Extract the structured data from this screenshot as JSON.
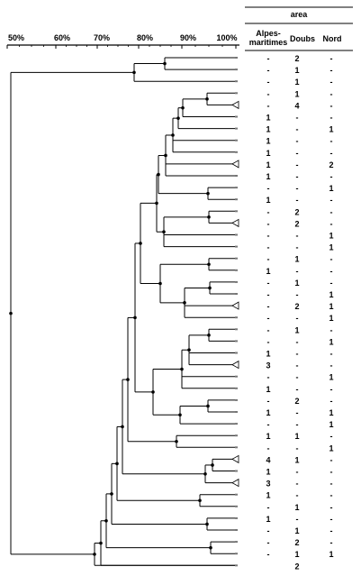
{
  "scale": {
    "tick_labels": [
      "50%",
      "60%",
      "70%",
      "80%",
      "90%",
      "100%"
    ],
    "ticks": [
      50,
      60,
      70,
      80,
      90,
      100
    ]
  },
  "table": {
    "group_header": "area",
    "columns": [
      {
        "line1": "Alpes-",
        "line2": "maritimes"
      },
      {
        "line1": "Doubs",
        "line2": ""
      },
      {
        "line1": "Nord",
        "line2": ""
      }
    ],
    "rows": [
      [
        "-",
        "2",
        "-"
      ],
      [
        "-",
        "1",
        "-"
      ],
      [
        "-",
        "1",
        "-"
      ],
      [
        "-",
        "1",
        "-"
      ],
      [
        "-",
        "4",
        "-"
      ],
      [
        "1",
        "-",
        "-"
      ],
      [
        "1",
        "-",
        "1"
      ],
      [
        "1",
        "-",
        "-"
      ],
      [
        "1",
        "-",
        "-"
      ],
      [
        "1",
        "-",
        "2"
      ],
      [
        "1",
        "-",
        "-"
      ],
      [
        "-",
        "-",
        "1"
      ],
      [
        "1",
        "-",
        "-"
      ],
      [
        "-",
        "2",
        "-"
      ],
      [
        "-",
        "2",
        "-"
      ],
      [
        "-",
        "-",
        "1"
      ],
      [
        "-",
        "-",
        "1"
      ],
      [
        "-",
        "1",
        "-"
      ],
      [
        "1",
        "-",
        "-"
      ],
      [
        "-",
        "1",
        "-"
      ],
      [
        "-",
        "-",
        "1"
      ],
      [
        "-",
        "2",
        "1"
      ],
      [
        "-",
        "-",
        "1"
      ],
      [
        "-",
        "1",
        "-"
      ],
      [
        "-",
        "-",
        "1"
      ],
      [
        "1",
        "-",
        "-"
      ],
      [
        "3",
        "-",
        "-"
      ],
      [
        "-",
        "-",
        "1"
      ],
      [
        "1",
        "-",
        "-"
      ],
      [
        "-",
        "2",
        "-"
      ],
      [
        "1",
        "-",
        "1"
      ],
      [
        "-",
        "-",
        "1"
      ],
      [
        "1",
        "1",
        "-"
      ],
      [
        "-",
        "-",
        "1"
      ],
      [
        "4",
        "1",
        "-"
      ],
      [
        "1",
        "-",
        "-"
      ],
      [
        "3",
        "-",
        "-"
      ],
      [
        "1",
        "-",
        "-"
      ],
      [
        "-",
        "1",
        "-"
      ],
      [
        "1",
        "-",
        "-"
      ],
      [
        "-",
        "1",
        "-"
      ],
      [
        "-",
        "2",
        "-"
      ],
      [
        "-",
        "1",
        "1"
      ],
      [
        "",
        "2",
        ""
      ]
    ]
  }
}
